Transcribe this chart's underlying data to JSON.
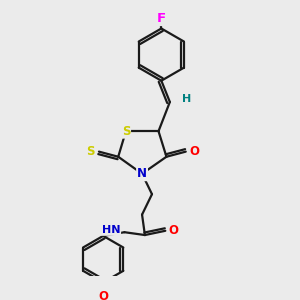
{
  "bg_color": "#ebebeb",
  "bond_color": "#1a1a1a",
  "bond_width": 1.6,
  "atom_colors": {
    "F": "#ff00ff",
    "S": "#cccc00",
    "N": "#0000cc",
    "O": "#ff0000",
    "H": "#008080",
    "C": "#1a1a1a"
  },
  "font_size": 8.5,
  "fig_size": [
    3.0,
    3.0
  ],
  "dpi": 100
}
